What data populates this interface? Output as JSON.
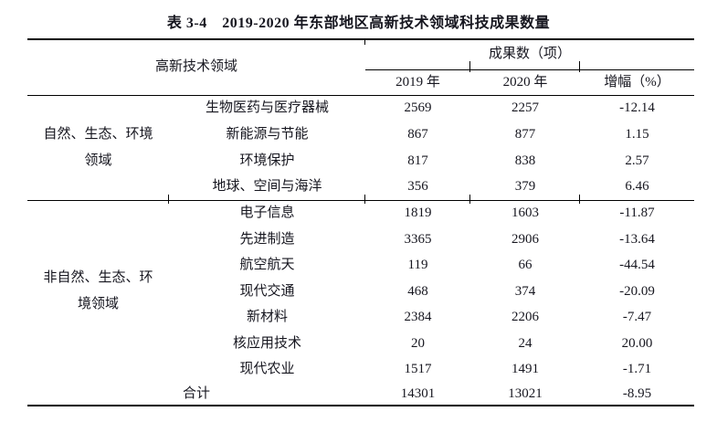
{
  "title": "表 3-4　2019-2020 年东部地区高新技术领域科技成果数量",
  "table": {
    "header": {
      "field_label": "高新技术领域",
      "results_label": "成果数（项）",
      "col_2019": "2019 年",
      "col_2020": "2020 年",
      "col_growth": "增幅（%）"
    },
    "groups": [
      {
        "name_lines": [
          "自然、生态、环境",
          "领域"
        ],
        "rows": [
          {
            "field": "生物医药与医疗器械",
            "y2019": "2569",
            "y2020": "2257",
            "growth": "-12.14"
          },
          {
            "field": "新能源与节能",
            "y2019": "867",
            "y2020": "877",
            "growth": "1.15"
          },
          {
            "field": "环境保护",
            "y2019": "817",
            "y2020": "838",
            "growth": "2.57"
          },
          {
            "field": "地球、空间与海洋",
            "y2019": "356",
            "y2020": "379",
            "growth": "6.46"
          }
        ]
      },
      {
        "name_lines": [
          "非自然、生态、环",
          "境领域"
        ],
        "rows": [
          {
            "field": "电子信息",
            "y2019": "1819",
            "y2020": "1603",
            "growth": "-11.87"
          },
          {
            "field": "先进制造",
            "y2019": "3365",
            "y2020": "2906",
            "growth": "-13.64"
          },
          {
            "field": "航空航天",
            "y2019": "119",
            "y2020": "66",
            "growth": "-44.54"
          },
          {
            "field": "现代交通",
            "y2019": "468",
            "y2020": "374",
            "growth": "-20.09"
          },
          {
            "field": "新材料",
            "y2019": "2384",
            "y2020": "2206",
            "growth": "-7.47"
          },
          {
            "field": "核应用技术",
            "y2019": "20",
            "y2020": "24",
            "growth": "20.00"
          },
          {
            "field": "现代农业",
            "y2019": "1517",
            "y2020": "1491",
            "growth": "-1.71"
          }
        ]
      }
    ],
    "total": {
      "label": "合计",
      "y2019": "14301",
      "y2020": "13021",
      "growth": "-8.95"
    }
  }
}
